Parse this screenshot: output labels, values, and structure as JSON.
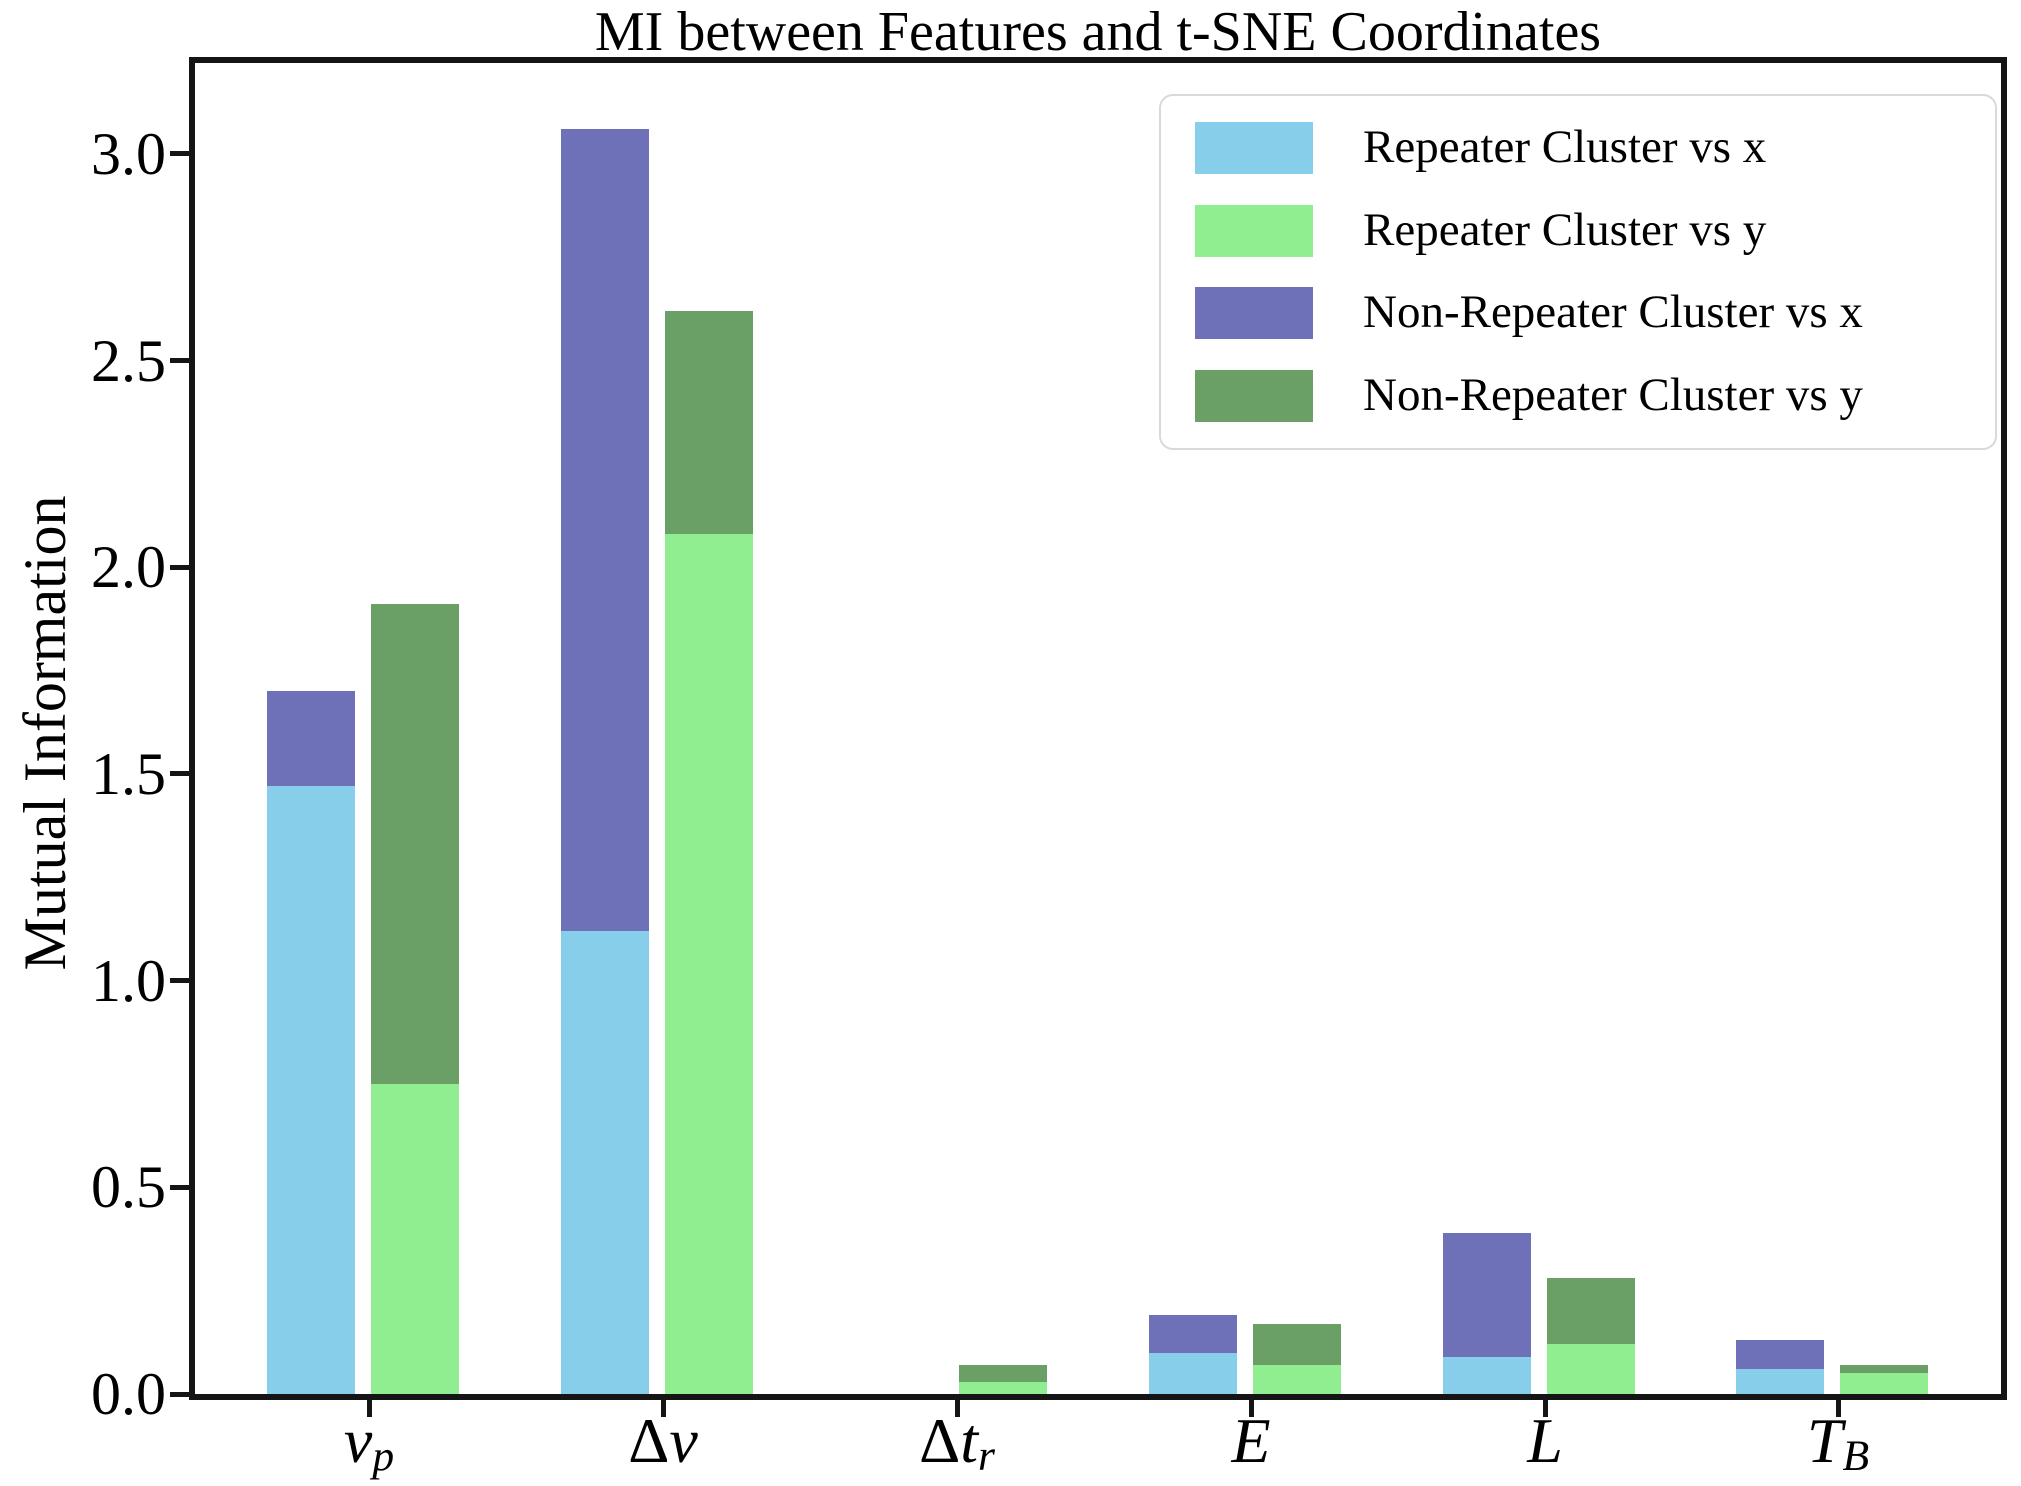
{
  "figure": {
    "title": "MI between Features and t-SNE Coordinates",
    "ylabel": "Mutual Information"
  },
  "colors": {
    "axis": "#151515",
    "text": "#000000",
    "background": "#ffffff",
    "legend_border": "#d9d9d9",
    "repeater_x": "#87CEEB",
    "repeater_y": "#90EE90",
    "nonrepeater_x": "#6E71B8",
    "nonrepeater_y": "#6AA066"
  },
  "chart_data": {
    "type": "bar",
    "title": "MI between Features and t-SNE Coordinates",
    "xlabel": "",
    "ylabel": "Mutual Information",
    "ylim": [
      0,
      3.22
    ],
    "yticks": [
      "0.0",
      "0.5",
      "1.0",
      "1.5",
      "2.0",
      "2.5",
      "3.0"
    ],
    "grid": false,
    "legend_position": "upper right",
    "categories": [
      "ν_p",
      "Δν",
      "Δt_r",
      "E",
      "L",
      "T_B"
    ],
    "category_labels": [
      {
        "prefix": "",
        "base": "ν",
        "sub": "p"
      },
      {
        "prefix": "Δ",
        "base": "ν",
        "sub": ""
      },
      {
        "prefix": "Δ",
        "base": "t",
        "sub": "r"
      },
      {
        "prefix": "",
        "base": "E",
        "sub": ""
      },
      {
        "prefix": "",
        "base": "L",
        "sub": ""
      },
      {
        "prefix": "",
        "base": "T",
        "sub": "B"
      }
    ],
    "bar_layout": "two bars per category: left bar overlays 'vs x' series (Repeater in front of Non-Repeater), right bar overlays 'vs y' series (Repeater in front of Non-Repeater)",
    "series": [
      {
        "name": "Repeater Cluster vs x",
        "color": "#87CEEB",
        "pair": "x",
        "layer": "front",
        "values": [
          1.47,
          1.12,
          0.0,
          0.1,
          0.09,
          0.06
        ]
      },
      {
        "name": "Repeater Cluster vs y",
        "color": "#90EE90",
        "pair": "y",
        "layer": "front",
        "values": [
          0.75,
          2.08,
          0.03,
          0.07,
          0.12,
          0.05
        ]
      },
      {
        "name": "Non-Repeater Cluster vs x",
        "color": "#6E71B8",
        "pair": "x",
        "layer": "back",
        "values": [
          1.7,
          3.06,
          0.0,
          0.19,
          0.39,
          0.13
        ]
      },
      {
        "name": "Non-Repeater Cluster vs y",
        "color": "#6AA066",
        "pair": "y",
        "layer": "back",
        "values": [
          1.91,
          2.62,
          0.07,
          0.17,
          0.28,
          0.07
        ]
      }
    ]
  }
}
